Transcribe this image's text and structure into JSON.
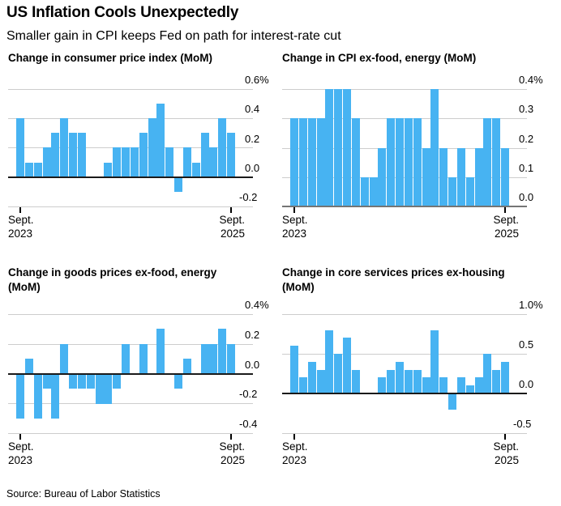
{
  "header": {
    "title": "US Inflation Cools Unexpectedly",
    "subtitle": "Smaller gain in CPI keeps Fed on path for interest-rate cut"
  },
  "source": {
    "text": "Source: Bureau of Labor Statistics"
  },
  "colors": {
    "bar": "#47b3f2",
    "gridline": "#cdcdcd",
    "zero_black": "#1a1a1a",
    "zero_gray": "#757575",
    "tick": "#000000",
    "background": "#ffffff"
  },
  "x_axis": {
    "left_label_lines": [
      "Sept.",
      "2023"
    ],
    "right_label_lines": [
      "Sept.",
      "2025"
    ]
  },
  "chart_data": [
    {
      "type": "bar",
      "title_lines": [
        "Change in consumer price index (MoM)"
      ],
      "ylabel": "%",
      "ylim": [
        -0.2,
        0.6
      ],
      "gridlines": [
        0.6,
        0.4,
        0.2,
        0.0,
        -0.2
      ],
      "tick_labels": [
        "0.6%",
        "0.4",
        "0.2",
        "0.0",
        "-0.2"
      ],
      "zero_style": "black",
      "x_tick_labels": [
        "Sept. 2023",
        "Sept. 2025"
      ],
      "x_note": "25 monthly bars, Sept. 2023 through Sept. 2025",
      "values": [
        0.4,
        0.1,
        0.1,
        0.2,
        0.3,
        0.4,
        0.3,
        0.3,
        0.0,
        0.0,
        0.1,
        0.2,
        0.2,
        0.2,
        0.3,
        0.4,
        0.5,
        0.2,
        -0.1,
        0.2,
        0.1,
        0.3,
        0.2,
        0.4,
        0.3
      ]
    },
    {
      "type": "bar",
      "title_lines": [
        "Change in CPI ex-food, energy (MoM)"
      ],
      "ylabel": "%",
      "ylim": [
        0.0,
        0.4
      ],
      "gridlines": [
        0.4,
        0.3,
        0.2,
        0.1,
        0.0
      ],
      "tick_labels": [
        "0.4%",
        "0.3",
        "0.2",
        "0.1",
        "0.0"
      ],
      "zero_style": "gray",
      "x_tick_labels": [
        "Sept. 2023",
        "Sept. 2025"
      ],
      "x_note": "25 monthly bars, Sept. 2023 through Sept. 2025",
      "values": [
        0.3,
        0.3,
        0.3,
        0.3,
        0.4,
        0.4,
        0.4,
        0.3,
        0.1,
        0.1,
        0.2,
        0.3,
        0.3,
        0.3,
        0.3,
        0.2,
        0.4,
        0.2,
        0.1,
        0.2,
        0.1,
        0.2,
        0.3,
        0.3,
        0.2
      ]
    },
    {
      "type": "bar",
      "title_lines": [
        "Change in goods prices ex-food, energy",
        "(MoM)"
      ],
      "ylabel": "%",
      "ylim": [
        -0.4,
        0.4
      ],
      "gridlines": [
        0.4,
        0.2,
        0.0,
        -0.2,
        -0.4
      ],
      "tick_labels": [
        "0.4%",
        "0.2",
        "0.0",
        "-0.2",
        "-0.4"
      ],
      "zero_style": "black",
      "x_tick_labels": [
        "Sept. 2023",
        "Sept. 2025"
      ],
      "x_note": "25 monthly bars, Sept. 2023 through Sept. 2025",
      "values": [
        -0.3,
        0.1,
        -0.3,
        -0.1,
        -0.3,
        0.2,
        -0.1,
        -0.1,
        -0.1,
        -0.2,
        -0.2,
        -0.1,
        0.2,
        0.0,
        0.2,
        0.0,
        0.3,
        0.0,
        -0.1,
        0.1,
        0.0,
        0.2,
        0.2,
        0.3,
        0.2
      ]
    },
    {
      "type": "bar",
      "title_lines": [
        "Change in core services prices ex-housing",
        "(MoM)"
      ],
      "ylabel": "%",
      "ylim": [
        -0.5,
        1.0
      ],
      "gridlines": [
        1.0,
        0.5,
        0.0,
        -0.5
      ],
      "tick_labels": [
        "1.0%",
        "0.5",
        "0.0",
        "-0.5"
      ],
      "zero_style": "black",
      "x_tick_labels": [
        "Sept. 2023",
        "Sept. 2025"
      ],
      "x_note": "25 monthly bars, Sept. 2023 through Sept. 2025",
      "values": [
        0.6,
        0.2,
        0.4,
        0.3,
        0.8,
        0.5,
        0.7,
        0.3,
        0.0,
        0.0,
        0.2,
        0.3,
        0.4,
        0.3,
        0.3,
        0.2,
        0.8,
        0.2,
        -0.2,
        0.2,
        0.1,
        0.2,
        0.5,
        0.3,
        0.4
      ]
    }
  ]
}
